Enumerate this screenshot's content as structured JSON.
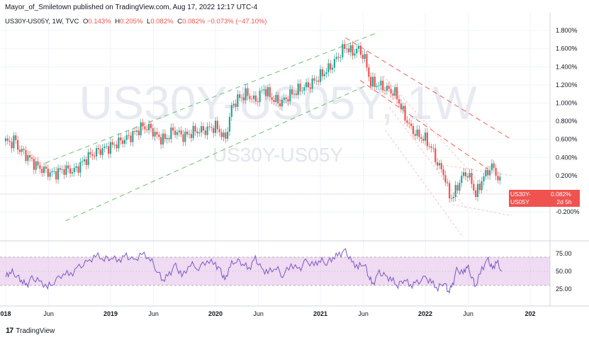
{
  "header": {
    "text": "Mayor_of_Smiletown published on TradingView.com, Aug 17, 2022 12:17 UTC-4"
  },
  "legend": {
    "symbol": "US30Y-US05Y, 1W, TVC",
    "open_label": "O",
    "open": "0.143%",
    "high_label": "H",
    "high": "0.205%",
    "low_label": "L",
    "low": "0.082%",
    "close_label": "C",
    "close": "0.082%",
    "change": "−0.073% (−47.10%)"
  },
  "watermark": {
    "big": "US30Y-US05Y, 1W",
    "small": "US30Y-US05Y"
  },
  "price_tag": {
    "symbol": "US30Y-US05Y",
    "value": "0.082%",
    "time": "2d 5h"
  },
  "footer": {
    "brand": "TradingView"
  },
  "colors": {
    "up": "#26a69a",
    "down": "#ef5350",
    "rsi": "#7e57c2",
    "rsi_band": "#e1bee7",
    "channel_green": "#66bb6a",
    "channel_red": "#ef5350"
  },
  "chart_data": {
    "type": "candlestick",
    "price_axis": {
      "ticks": [
        "1.800%",
        "1.600%",
        "1.400%",
        "1.200%",
        "1.000%",
        "0.800%",
        "0.600%",
        "0.400%",
        "0.200%",
        "-0.200%"
      ],
      "range": [
        -0.35,
        1.95
      ]
    },
    "rsi_axis": {
      "ticks": [
        "75.00",
        "50.00",
        "25.00"
      ],
      "range": [
        0,
        100
      ],
      "band": [
        30,
        70
      ]
    },
    "time_axis": {
      "ticks": [
        "018",
        "Jun",
        "2019",
        "Jun",
        "2020",
        "Jun",
        "2021",
        "Jun",
        "2022",
        "Jun",
        "202"
      ],
      "positions": [
        2018.0,
        2018.41,
        2019.0,
        2019.41,
        2020.0,
        2020.41,
        2021.0,
        2021.41,
        2022.0,
        2022.41,
        2023.0
      ]
    },
    "price_path": [
      [
        2018.0,
        0.58
      ],
      [
        2018.05,
        0.55
      ],
      [
        2018.08,
        0.61
      ],
      [
        2018.12,
        0.5
      ],
      [
        2018.2,
        0.42
      ],
      [
        2018.3,
        0.3
      ],
      [
        2018.4,
        0.24
      ],
      [
        2018.46,
        0.22
      ],
      [
        2018.55,
        0.27
      ],
      [
        2018.65,
        0.25
      ],
      [
        2018.72,
        0.33
      ],
      [
        2018.8,
        0.42
      ],
      [
        2018.9,
        0.48
      ],
      [
        2019.0,
        0.52
      ],
      [
        2019.1,
        0.58
      ],
      [
        2019.2,
        0.64
      ],
      [
        2019.3,
        0.74
      ],
      [
        2019.38,
        0.72
      ],
      [
        2019.45,
        0.62
      ],
      [
        2019.52,
        0.6
      ],
      [
        2019.6,
        0.7
      ],
      [
        2019.7,
        0.63
      ],
      [
        2019.8,
        0.69
      ],
      [
        2019.9,
        0.7
      ],
      [
        2020.0,
        0.74
      ],
      [
        2020.05,
        0.68
      ],
      [
        2020.09,
        0.58
      ],
      [
        2020.16,
        0.98
      ],
      [
        2020.22,
        1.05
      ],
      [
        2020.3,
        1.1
      ],
      [
        2020.38,
        1.02
      ],
      [
        2020.46,
        1.16
      ],
      [
        2020.54,
        1.05
      ],
      [
        2020.62,
        1.0
      ],
      [
        2020.7,
        1.08
      ],
      [
        2020.8,
        1.15
      ],
      [
        2020.9,
        1.2
      ],
      [
        2021.0,
        1.3
      ],
      [
        2021.1,
        1.4
      ],
      [
        2021.18,
        1.53
      ],
      [
        2021.24,
        1.63
      ],
      [
        2021.3,
        1.55
      ],
      [
        2021.36,
        1.6
      ],
      [
        2021.42,
        1.5
      ],
      [
        2021.48,
        1.22
      ],
      [
        2021.56,
        1.2
      ],
      [
        2021.64,
        1.15
      ],
      [
        2021.72,
        1.1
      ],
      [
        2021.78,
        0.92
      ],
      [
        2021.86,
        0.72
      ],
      [
        2021.92,
        0.65
      ],
      [
        2022.0,
        0.6
      ],
      [
        2022.06,
        0.5
      ],
      [
        2022.12,
        0.32
      ],
      [
        2022.18,
        0.22
      ],
      [
        2022.22,
        0.0
      ],
      [
        2022.26,
        -0.05
      ],
      [
        2022.32,
        0.12
      ],
      [
        2022.38,
        0.24
      ],
      [
        2022.44,
        0.14
      ],
      [
        2022.48,
        -0.02
      ],
      [
        2022.54,
        0.15
      ],
      [
        2022.6,
        0.26
      ],
      [
        2022.65,
        0.3
      ],
      [
        2022.7,
        0.14
      ],
      [
        2022.73,
        0.08
      ]
    ],
    "rsi_path": [
      [
        2018.0,
        42
      ],
      [
        2018.05,
        50
      ],
      [
        2018.1,
        45
      ],
      [
        2018.15,
        38
      ],
      [
        2018.2,
        30
      ],
      [
        2018.25,
        40
      ],
      [
        2018.32,
        35
      ],
      [
        2018.4,
        28
      ],
      [
        2018.46,
        35
      ],
      [
        2018.55,
        48
      ],
      [
        2018.62,
        46
      ],
      [
        2018.7,
        56
      ],
      [
        2018.78,
        62
      ],
      [
        2018.86,
        72
      ],
      [
        2018.94,
        68
      ],
      [
        2019.0,
        70
      ],
      [
        2019.08,
        66
      ],
      [
        2019.15,
        72
      ],
      [
        2019.22,
        64
      ],
      [
        2019.3,
        74
      ],
      [
        2019.38,
        68
      ],
      [
        2019.44,
        52
      ],
      [
        2019.5,
        38
      ],
      [
        2019.56,
        46
      ],
      [
        2019.62,
        58
      ],
      [
        2019.68,
        42
      ],
      [
        2019.76,
        60
      ],
      [
        2019.84,
        55
      ],
      [
        2019.92,
        66
      ],
      [
        2020.0,
        60
      ],
      [
        2020.05,
        50
      ],
      [
        2020.09,
        36
      ],
      [
        2020.14,
        58
      ],
      [
        2020.2,
        66
      ],
      [
        2020.26,
        62
      ],
      [
        2020.32,
        54
      ],
      [
        2020.38,
        68
      ],
      [
        2020.44,
        52
      ],
      [
        2020.5,
        48
      ],
      [
        2020.58,
        56
      ],
      [
        2020.64,
        44
      ],
      [
        2020.72,
        60
      ],
      [
        2020.8,
        52
      ],
      [
        2020.86,
        64
      ],
      [
        2020.94,
        58
      ],
      [
        2021.0,
        66
      ],
      [
        2021.06,
        62
      ],
      [
        2021.12,
        70
      ],
      [
        2021.18,
        74
      ],
      [
        2021.24,
        78
      ],
      [
        2021.3,
        62
      ],
      [
        2021.36,
        56
      ],
      [
        2021.42,
        62
      ],
      [
        2021.46,
        44
      ],
      [
        2021.5,
        32
      ],
      [
        2021.56,
        48
      ],
      [
        2021.62,
        42
      ],
      [
        2021.68,
        38
      ],
      [
        2021.74,
        30
      ],
      [
        2021.8,
        40
      ],
      [
        2021.86,
        30
      ],
      [
        2021.92,
        34
      ],
      [
        2022.0,
        40
      ],
      [
        2022.06,
        34
      ],
      [
        2022.12,
        26
      ],
      [
        2022.18,
        36
      ],
      [
        2022.22,
        22
      ],
      [
        2022.26,
        30
      ],
      [
        2022.3,
        52
      ],
      [
        2022.36,
        46
      ],
      [
        2022.4,
        58
      ],
      [
        2022.44,
        44
      ],
      [
        2022.48,
        30
      ],
      [
        2022.54,
        54
      ],
      [
        2022.6,
        66
      ],
      [
        2022.64,
        52
      ],
      [
        2022.68,
        64
      ],
      [
        2022.73,
        50
      ]
    ]
  }
}
